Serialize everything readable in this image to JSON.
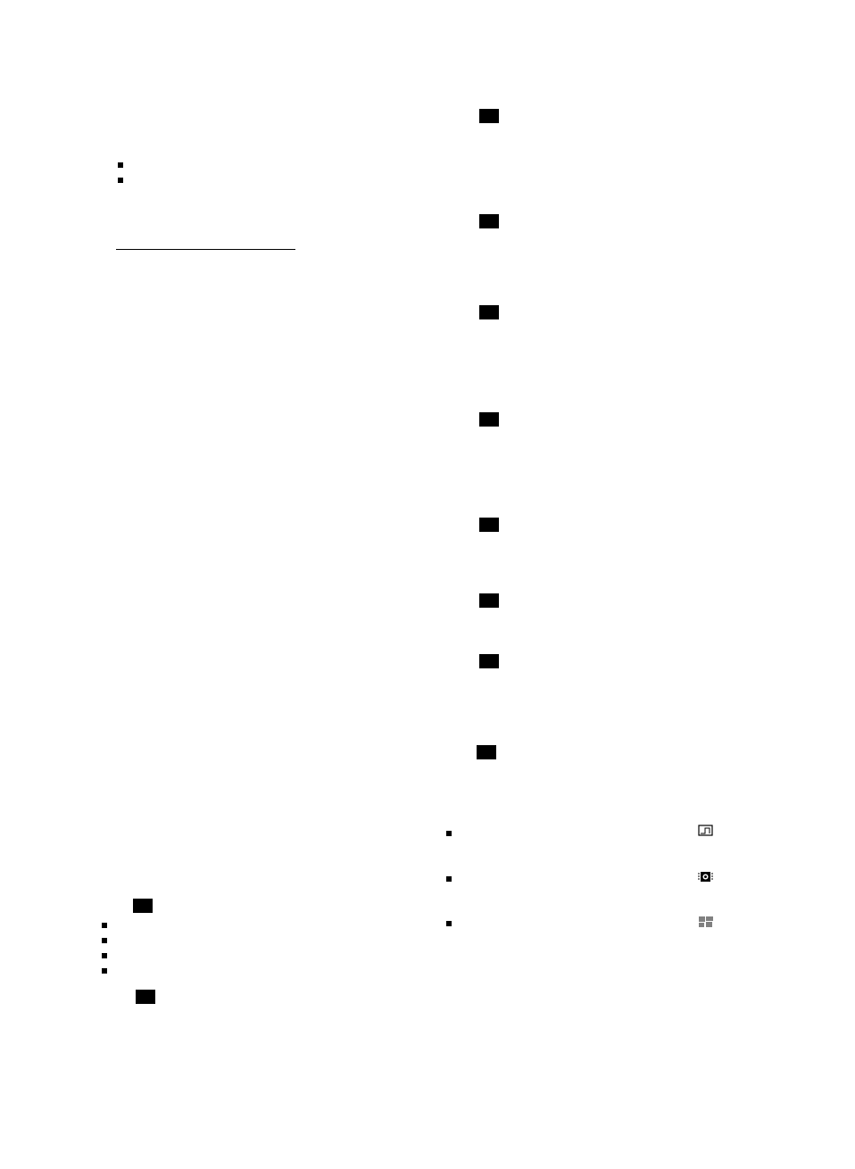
{
  "colors": {
    "ink": "#000000",
    "background": "#ffffff"
  },
  "icons": [
    "chart-step-icon",
    "chip-icon",
    "pattern-grid-icon"
  ]
}
